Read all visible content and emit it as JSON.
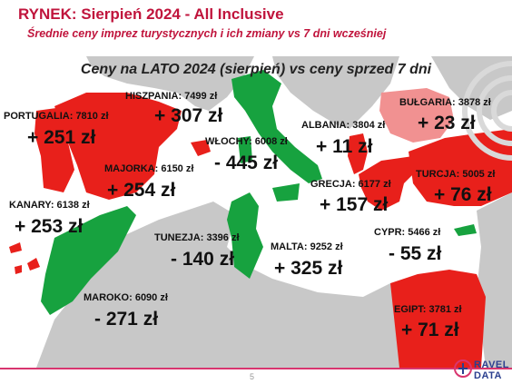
{
  "header": {
    "title": "RYNEK: Sierpień 2024 - All Inclusive",
    "subtitle": "Średnie ceny imprez turystycznych i ich zmiany vs 7 dni wcześniej"
  },
  "map": {
    "title": "Ceny na LATO 2024 (sierpień) vs ceny sprzed 7 dni",
    "colors": {
      "up": "#e8201b",
      "down": "#17a23f",
      "light_up": "#f19191",
      "land": "#c8c8c8",
      "sea": "#ffffff"
    },
    "countries": {
      "portugalia": {
        "label": "PORTUGALIA: 7810 zł",
        "change": "+ 251 zł"
      },
      "hiszpania": {
        "label": "HISZPANIA: 7499 zł",
        "change": "+ 307 zł"
      },
      "majorka": {
        "label": "MAJORKA: 6150 zł",
        "change": "+ 254 zł"
      },
      "kanary": {
        "label": "KANARY: 6138 zł",
        "change": "+ 253 zł"
      },
      "wlochy": {
        "label": "WŁOCHY: 6008 zł",
        "change": "- 445 zł"
      },
      "albania": {
        "label": "ALBANIA: 3804 zł",
        "change": "+ 11 zł"
      },
      "bulgaria": {
        "label": "BUŁGARIA: 3878 zł",
        "change": "+ 23 zł"
      },
      "turcja": {
        "label": "TURCJA: 5005 zł",
        "change": "+ 76 zł"
      },
      "grecja": {
        "label": "GRECJA: 6177 zł",
        "change": "+ 157 zł"
      },
      "tunezja": {
        "label": "TUNEZJA: 3396 zł",
        "change": "- 140 zł"
      },
      "malta": {
        "label": "MALTA: 9252 zł",
        "change": "+ 325 zł"
      },
      "cypr": {
        "label": "CYPR: 5466 zł",
        "change": "- 55 zł"
      },
      "maroko": {
        "label": "MAROKO: 6090 zł",
        "change": "- 271 zł"
      },
      "egipt": {
        "label": "EGIPT: 3781 zł",
        "change": "+ 71 zł"
      }
    }
  },
  "footer": {
    "page_number": "5",
    "logo_line1": "RAVEL",
    "logo_line2": "DATA"
  }
}
